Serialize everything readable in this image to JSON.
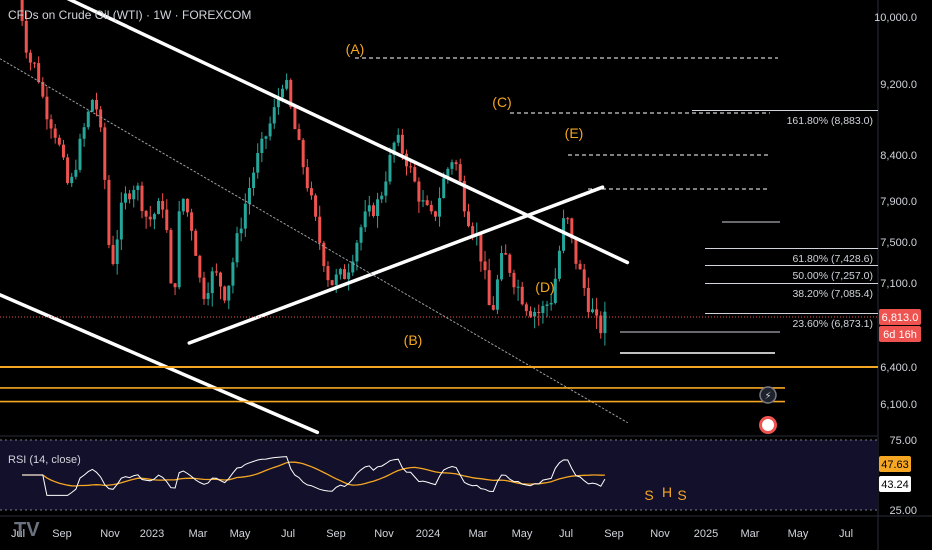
{
  "header": {
    "title": "CFDs on Crude Oil (WTI) · 1W · FOREXCOM"
  },
  "colors": {
    "background": "#000000",
    "up": "#26a69a",
    "down": "#ef5350",
    "trendline": "#ffffff",
    "support": "#f5a623",
    "rsi_line": "#ffffff",
    "rsi_ma": "#f5a623",
    "wave_label": "#f5a623",
    "price_label": "#ef5350",
    "rsi_value_label": "#f5a623"
  },
  "price_axis": {
    "ticks": [
      "10,000.0",
      "9,200.0",
      "8,400.0",
      "7,900.0",
      "7,500.0",
      "7,100.0",
      "6,400.0",
      "6,100.0"
    ],
    "current_price": "6,813.0",
    "countdown": "6d 16h"
  },
  "time_axis": {
    "labels": [
      "Jul",
      "Sep",
      "Nov",
      "2023",
      "Mar",
      "May",
      "Jul",
      "Sep",
      "Nov",
      "2024",
      "Mar",
      "May",
      "Jul",
      "Sep",
      "Nov",
      "2025",
      "Mar",
      "May",
      "Jul"
    ]
  },
  "wave_labels": [
    "(A)",
    "(B)",
    "(C)",
    "(D)",
    "(E)"
  ],
  "fib_levels": [
    {
      "pct": "161.80%",
      "price": "(8,883.0)"
    },
    {
      "pct": "61.80%",
      "price": "(7,428.6)"
    },
    {
      "pct": "50.00%",
      "price": "(7,257.0)"
    },
    {
      "pct": "38.20%",
      "price": "(7,085.4)"
    },
    {
      "pct": "23.60%",
      "price": "(6,873.1)"
    }
  ],
  "shs_labels": [
    "S",
    "H",
    "S"
  ],
  "rsi": {
    "title": "RSI (14, close)",
    "axis_ticks": [
      "75.00",
      "25.00"
    ],
    "value_ma": "47.63",
    "value": "43.24"
  },
  "chart_data": {
    "type": "candlestick",
    "title": "CFDs on Crude Oil (WTI) · 1W · FOREXCOM",
    "x_range": [
      "2022-06",
      "2025-07"
    ],
    "y_range": [
      5870,
      10000
    ],
    "y_ticks": [
      10000,
      9200,
      8400,
      7900,
      7500,
      7100,
      6400,
      6100
    ],
    "close_path": [
      {
        "x": "2022-06-20",
        "y": 10500
      },
      {
        "x": "2022-07-04",
        "y": 10200
      },
      {
        "x": "2022-07-18",
        "y": 9500
      },
      {
        "x": "2022-08-01",
        "y": 9400
      },
      {
        "x": "2022-08-15",
        "y": 8950
      },
      {
        "x": "2022-09-05",
        "y": 8600
      },
      {
        "x": "2022-09-26",
        "y": 8000
      },
      {
        "x": "2022-10-17",
        "y": 8600
      },
      {
        "x": "2022-11-07",
        "y": 9100
      },
      {
        "x": "2022-11-21",
        "y": 8500
      },
      {
        "x": "2022-12-05",
        "y": 7200
      },
      {
        "x": "2022-12-26",
        "y": 7900
      },
      {
        "x": "2023-01-16",
        "y": 8100
      },
      {
        "x": "2023-02-06",
        "y": 7700
      },
      {
        "x": "2023-03-06",
        "y": 7900
      },
      {
        "x": "2023-03-20",
        "y": 6800
      },
      {
        "x": "2023-04-03",
        "y": 8000
      },
      {
        "x": "2023-04-24",
        "y": 7600
      },
      {
        "x": "2023-05-08",
        "y": 7000
      },
      {
        "x": "2023-05-29",
        "y": 7200
      },
      {
        "x": "2023-06-19",
        "y": 7000
      },
      {
        "x": "2023-07-10",
        "y": 7600
      },
      {
        "x": "2023-08-07",
        "y": 8300
      },
      {
        "x": "2023-09-04",
        "y": 8800
      },
      {
        "x": "2023-09-25",
        "y": 9300
      },
      {
        "x": "2023-10-09",
        "y": 8800
      },
      {
        "x": "2023-10-30",
        "y": 8200
      },
      {
        "x": "2023-11-20",
        "y": 7600
      },
      {
        "x": "2023-12-11",
        "y": 7100
      },
      {
        "x": "2024-01-08",
        "y": 7200
      },
      {
        "x": "2024-02-05",
        "y": 7700
      },
      {
        "x": "2024-03-04",
        "y": 7900
      },
      {
        "x": "2024-04-01",
        "y": 8600
      },
      {
        "x": "2024-04-22",
        "y": 8300
      },
      {
        "x": "2024-05-13",
        "y": 7900
      },
      {
        "x": "2024-06-03",
        "y": 7700
      },
      {
        "x": "2024-06-24",
        "y": 8200
      },
      {
        "x": "2024-07-08",
        "y": 8400
      },
      {
        "x": "2024-07-29",
        "y": 7800
      },
      {
        "x": "2024-08-19",
        "y": 7500
      },
      {
        "x": "2024-09-09",
        "y": 6800
      },
      {
        "x": "2024-09-30",
        "y": 7400
      },
      {
        "x": "2024-10-21",
        "y": 7100
      },
      {
        "x": "2024-11-11",
        "y": 6900
      },
      {
        "x": "2024-12-02",
        "y": 6850
      },
      {
        "x": "2024-12-23",
        "y": 7000
      },
      {
        "x": "2025-01-13",
        "y": 7800
      },
      {
        "x": "2025-01-27",
        "y": 7400
      },
      {
        "x": "2025-02-17",
        "y": 7000
      },
      {
        "x": "2025-03-10",
        "y": 6700
      },
      {
        "x": "2025-03-24",
        "y": 6813
      }
    ],
    "current_price": 6813.0,
    "fibonacci": [
      {
        "ratio": 1.618,
        "price": 8883.0
      },
      {
        "ratio": 0.618,
        "price": 7428.6
      },
      {
        "ratio": 0.5,
        "price": 7257.0
      },
      {
        "ratio": 0.382,
        "price": 7085.4
      },
      {
        "ratio": 0.236,
        "price": 6873.1
      }
    ],
    "waves": [
      {
        "label": "(A)",
        "x": "2023-09-25",
        "y": 9500
      },
      {
        "label": "(B)",
        "x": "2023-12-11",
        "y": 6900
      },
      {
        "label": "(C)",
        "x": "2024-04-08",
        "y": 8700
      },
      {
        "label": "(D)",
        "x": "2024-06-10",
        "y": 7650
      },
      {
        "label": "(E)",
        "x": "2024-07-08",
        "y": 8450
      }
    ],
    "trendlines": [
      {
        "name": "upper",
        "from": {
          "x": "2022-06-01",
          "y": 10600
        },
        "to": {
          "x": "2025-04-28",
          "y": 7300
        }
      },
      {
        "name": "lower-rising",
        "from": {
          "x": "2023-04-17",
          "y": 6600
        },
        "to": {
          "x": "2025-03-17",
          "y": 8050
        }
      },
      {
        "name": "lower-channel",
        "from": {
          "x": "2022-06-01",
          "y": 7000
        },
        "to": {
          "x": "2023-11-20",
          "y": 5870
        }
      },
      {
        "name": "dotted",
        "from": {
          "x": "2022-06-01",
          "y": 9500
        },
        "to": {
          "x": "2025-04-28",
          "y": 5950
        }
      }
    ],
    "support_lines": [
      6400,
      6230,
      6120
    ],
    "rsi": {
      "period": 14,
      "ylim": [
        20,
        80
      ],
      "last_value": 43.24,
      "ma_value": 47.63
    }
  }
}
